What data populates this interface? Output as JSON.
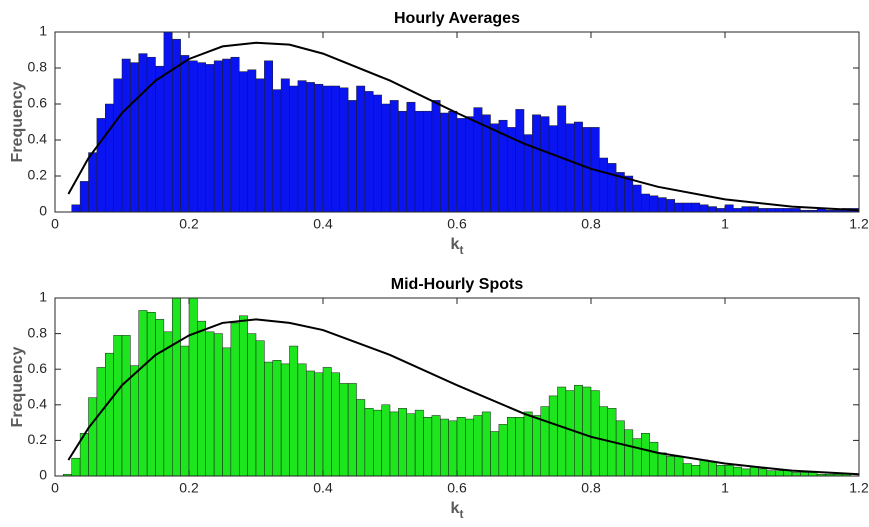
{
  "chart_data": [
    {
      "type": "histogram",
      "title": "Hourly Averages",
      "xlabel": "k",
      "xlabel_sub": "t",
      "ylabel": "Frequency",
      "color": "#0a14f0",
      "bins": [
        0.025,
        0.0375,
        0.05,
        0.0625,
        0.075,
        0.0875,
        0.1,
        0.1125,
        0.125,
        0.1375,
        0.15,
        0.1625,
        0.175,
        0.1875,
        0.2,
        0.2125,
        0.225,
        0.2375,
        0.25,
        0.2625,
        0.275,
        0.2875,
        0.3,
        0.3125,
        0.325,
        0.3375,
        0.35,
        0.3625,
        0.375,
        0.3875,
        0.4,
        0.4125,
        0.425,
        0.4375,
        0.45,
        0.4625,
        0.475,
        0.4875,
        0.5,
        0.5125,
        0.525,
        0.5375,
        0.55,
        0.5625,
        0.575,
        0.5875,
        0.6,
        0.6125,
        0.625,
        0.6375,
        0.65,
        0.6625,
        0.675,
        0.6875,
        0.7,
        0.7125,
        0.725,
        0.7375,
        0.75,
        0.7625,
        0.775,
        0.7875,
        0.8,
        0.8125,
        0.825,
        0.8375,
        0.85,
        0.8625,
        0.875,
        0.8875,
        0.9,
        0.9125,
        0.925,
        0.9375,
        0.95,
        0.9625,
        0.975,
        0.9875,
        1.0,
        1.0125,
        1.025,
        1.0375,
        1.05,
        1.0625,
        1.075,
        1.0875,
        1.1,
        1.1125,
        1.125,
        1.1375,
        1.15,
        1.1625,
        1.175,
        1.1875,
        1.2
      ],
      "values": [
        0.04,
        0.17,
        0.33,
        0.52,
        0.6,
        0.74,
        0.85,
        0.83,
        0.88,
        0.86,
        0.81,
        1.0,
        0.96,
        0.87,
        0.84,
        0.83,
        0.82,
        0.84,
        0.85,
        0.86,
        0.78,
        0.79,
        0.74,
        0.84,
        0.68,
        0.74,
        0.7,
        0.73,
        0.72,
        0.71,
        0.7,
        0.7,
        0.69,
        0.62,
        0.7,
        0.67,
        0.65,
        0.6,
        0.62,
        0.56,
        0.61,
        0.56,
        0.56,
        0.62,
        0.55,
        0.56,
        0.52,
        0.53,
        0.58,
        0.54,
        0.49,
        0.51,
        0.47,
        0.57,
        0.43,
        0.54,
        0.53,
        0.48,
        0.59,
        0.49,
        0.5,
        0.47,
        0.47,
        0.3,
        0.27,
        0.22,
        0.2,
        0.15,
        0.1,
        0.09,
        0.08,
        0.07,
        0.05,
        0.05,
        0.05,
        0.04,
        0.03,
        0.02,
        0.04,
        0.02,
        0.03,
        0.03,
        0.02,
        0.02,
        0.02,
        0.02,
        0.02,
        0.01,
        0.01,
        0.02,
        0.01,
        0.01,
        0.02,
        0.02
      ],
      "curve": {
        "color": "#000000",
        "x": [
          0.02,
          0.05,
          0.1,
          0.15,
          0.2,
          0.25,
          0.3,
          0.35,
          0.4,
          0.5,
          0.6,
          0.7,
          0.8,
          0.9,
          1.0,
          1.1,
          1.2
        ],
        "y": [
          0.1,
          0.3,
          0.55,
          0.73,
          0.85,
          0.92,
          0.94,
          0.93,
          0.88,
          0.73,
          0.55,
          0.38,
          0.24,
          0.14,
          0.07,
          0.03,
          0.01
        ]
      },
      "xlim": [
        0,
        1.2
      ],
      "ylim": [
        0,
        1
      ],
      "xticks": [
        0,
        0.2,
        0.4,
        0.6,
        0.8,
        1,
        1.2
      ],
      "yticks": [
        0,
        0.2,
        0.4,
        0.6,
        0.8,
        1
      ]
    },
    {
      "type": "histogram",
      "title": "Mid-Hourly Spots",
      "xlabel": "k",
      "xlabel_sub": "t",
      "ylabel": "Frequency",
      "color": "#1ee61e",
      "bins": [
        0.0125,
        0.025,
        0.0375,
        0.05,
        0.0625,
        0.075,
        0.0875,
        0.1,
        0.1125,
        0.125,
        0.1375,
        0.15,
        0.1625,
        0.175,
        0.1875,
        0.2,
        0.2125,
        0.225,
        0.2375,
        0.25,
        0.2625,
        0.275,
        0.2875,
        0.3,
        0.3125,
        0.325,
        0.3375,
        0.35,
        0.3625,
        0.375,
        0.3875,
        0.4,
        0.4125,
        0.425,
        0.4375,
        0.45,
        0.4625,
        0.475,
        0.4875,
        0.5,
        0.5125,
        0.525,
        0.5375,
        0.55,
        0.5625,
        0.575,
        0.5875,
        0.6,
        0.6125,
        0.625,
        0.6375,
        0.65,
        0.6625,
        0.675,
        0.6875,
        0.7,
        0.7125,
        0.725,
        0.7375,
        0.75,
        0.7625,
        0.775,
        0.7875,
        0.8,
        0.8125,
        0.825,
        0.8375,
        0.85,
        0.8625,
        0.875,
        0.8875,
        0.9,
        0.9125,
        0.925,
        0.9375,
        0.95,
        0.9625,
        0.975,
        0.9875,
        1.0,
        1.0125,
        1.025,
        1.0375,
        1.05,
        1.0625,
        1.075,
        1.0875,
        1.1,
        1.1125,
        1.125,
        1.1375,
        1.15,
        1.1625,
        1.175,
        1.1875
      ],
      "values": [
        0.01,
        0.1,
        0.24,
        0.44,
        0.61,
        0.69,
        0.79,
        0.79,
        0.62,
        0.93,
        0.92,
        0.88,
        0.81,
        1.0,
        0.73,
        1.0,
        0.87,
        0.81,
        0.8,
        0.72,
        0.86,
        0.9,
        0.8,
        0.76,
        0.64,
        0.65,
        0.63,
        0.73,
        0.63,
        0.59,
        0.58,
        0.61,
        0.58,
        0.52,
        0.52,
        0.43,
        0.38,
        0.37,
        0.4,
        0.36,
        0.38,
        0.35,
        0.37,
        0.33,
        0.34,
        0.32,
        0.31,
        0.33,
        0.32,
        0.34,
        0.36,
        0.25,
        0.29,
        0.33,
        0.33,
        0.36,
        0.34,
        0.39,
        0.45,
        0.5,
        0.48,
        0.51,
        0.5,
        0.48,
        0.39,
        0.38,
        0.31,
        0.26,
        0.21,
        0.24,
        0.19,
        0.13,
        0.11,
        0.11,
        0.07,
        0.06,
        0.09,
        0.08,
        0.06,
        0.06,
        0.05,
        0.04,
        0.05,
        0.04,
        0.03,
        0.03,
        0.03,
        0.02,
        0.02,
        0.02,
        0.01,
        0.01,
        0.01,
        0.01
      ],
      "curve": {
        "color": "#000000",
        "x": [
          0.02,
          0.05,
          0.1,
          0.15,
          0.2,
          0.25,
          0.3,
          0.35,
          0.4,
          0.5,
          0.6,
          0.7,
          0.8,
          0.9,
          1.0,
          1.1,
          1.2
        ],
        "y": [
          0.09,
          0.27,
          0.51,
          0.68,
          0.79,
          0.86,
          0.88,
          0.86,
          0.82,
          0.68,
          0.51,
          0.35,
          0.22,
          0.13,
          0.07,
          0.03,
          0.01
        ]
      },
      "xlim": [
        0,
        1.2
      ],
      "ylim": [
        0,
        1
      ],
      "xticks": [
        0,
        0.2,
        0.4,
        0.6,
        0.8,
        1,
        1.2
      ],
      "yticks": [
        0,
        0.2,
        0.4,
        0.6,
        0.8,
        1
      ]
    }
  ]
}
